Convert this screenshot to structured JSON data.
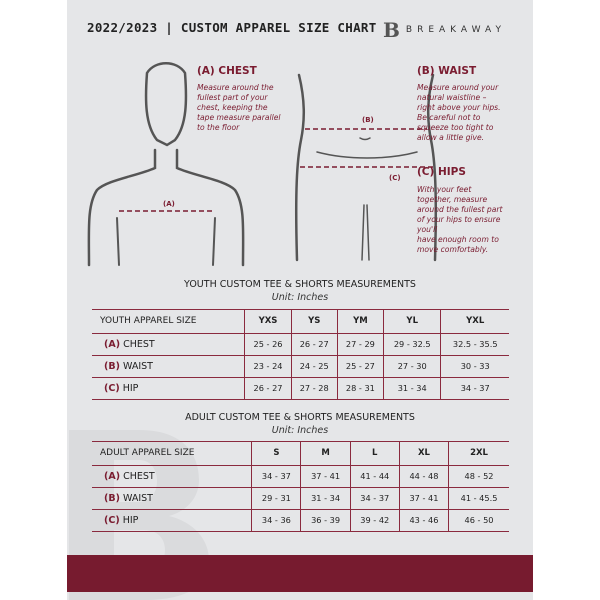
{
  "header": {
    "title": "2022/2023 | CUSTOM APPAREL SIZE CHART",
    "brand": "BREAKAWAY",
    "logo_letter": "B"
  },
  "guide": {
    "chest": {
      "title": "(A) CHEST",
      "text": [
        "Measure around the",
        "fullest part of your",
        "chest, keeping the",
        "tape measure parallel",
        "to the floor"
      ],
      "marker": "(A)"
    },
    "waist": {
      "title": "(B) WAIST",
      "text": [
        "Measure around your",
        "natural waistline –",
        "right above your hips.",
        "Be careful not to",
        "squeeze too tight to",
        "allow a little give."
      ],
      "marker": "(B)"
    },
    "hips": {
      "title": "(C) HIPS",
      "text": [
        "With your feet",
        "together, measure",
        "around the fullest part",
        "of your hips to ensure",
        "you'll",
        "have enough room to",
        "move comfortably."
      ],
      "marker": "(C)"
    }
  },
  "youth": {
    "title": "YOUTH CUSTOM TEE & SHORTS MEASUREMENTS",
    "unit": "Unit: Inches",
    "label": "YOUTH APPAREL SIZE",
    "sizes": [
      "YXS",
      "YS",
      "YM",
      "YL",
      "YXL"
    ],
    "rows": [
      {
        "code": "(A)",
        "name": "CHEST",
        "values": [
          "25 - 26",
          "26 - 27",
          "27 - 29",
          "29 - 32.5",
          "32.5 - 35.5"
        ]
      },
      {
        "code": "(B)",
        "name": "WAIST",
        "values": [
          "23 - 24",
          "24 - 25",
          "25 - 27",
          "27 - 30",
          "30 - 33"
        ]
      },
      {
        "code": "(C)",
        "name": "HIP",
        "values": [
          "26 - 27",
          "27 - 28",
          "28 - 31",
          "31 - 34",
          "34 - 37"
        ]
      }
    ]
  },
  "adult": {
    "title": "ADULT CUSTOM TEE & SHORTS MEASUREMENTS",
    "unit": "Unit: Inches",
    "label": "ADULT APPAREL SIZE",
    "sizes": [
      "S",
      "M",
      "L",
      "XL",
      "2XL"
    ],
    "rows": [
      {
        "code": "(A)",
        "name": "CHEST",
        "values": [
          "34 - 37",
          "37 - 41",
          "41 - 44",
          "44 - 48",
          "48 - 52"
        ]
      },
      {
        "code": "(B)",
        "name": "WAIST",
        "values": [
          "29 - 31",
          "31 - 34",
          "34 - 37",
          "37 - 41",
          "41 - 45.5"
        ]
      },
      {
        "code": "(C)",
        "name": "HIP",
        "values": [
          "34 - 36",
          "36 - 39",
          "39 - 42",
          "43 - 46",
          "46 - 50"
        ]
      }
    ]
  },
  "colors": {
    "accent": "#771b2f",
    "background": "#e5e6e8"
  }
}
